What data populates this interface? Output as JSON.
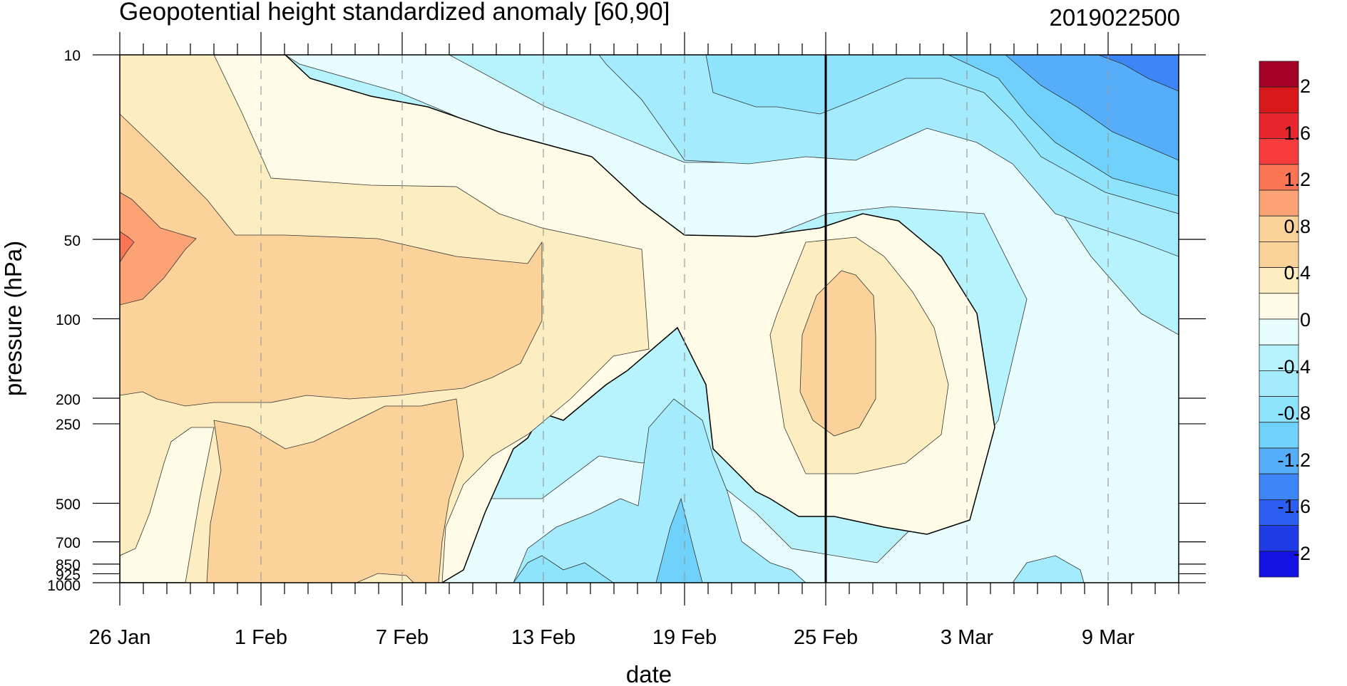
{
  "chart_data": {
    "type": "heatmap",
    "title": "Geopotential height standardized anomaly [60,90]",
    "run_label": "2019022500",
    "xlabel": "date",
    "ylabel": "pressure (hPa)",
    "x_tick_labels": [
      "26 Jan",
      "1 Feb",
      "7 Feb",
      "13 Feb",
      "19 Feb",
      "25 Feb",
      "3 Mar",
      "9 Mar"
    ],
    "x_range": [
      "2019-01-26",
      "2019-03-12"
    ],
    "y_tick_labels": [
      "10",
      "50",
      "100",
      "200",
      "250",
      "500",
      "700",
      "850",
      "925",
      "1000"
    ],
    "y_scale": "log",
    "y_range": [
      1000,
      10
    ],
    "vertical_marker_date": "2019-02-25",
    "colorbar_labels": [
      "2",
      "1.6",
      "1.2",
      "0.8",
      "0.4",
      "0",
      "-0.4",
      "-0.8",
      "-1.2",
      "-1.6",
      "-2"
    ],
    "colorbar_colors": [
      "#a50026",
      "#d7191c",
      "#e8262d",
      "#f63c3c",
      "#fb7454",
      "#fca375",
      "#fcd29b",
      "#fcd29b",
      "#fdeec1",
      "#fffbe7",
      "#e8fdfe",
      "#b6f3fc",
      "#a4ecfd",
      "#8ee4fc",
      "#70d2fa",
      "#56aefa",
      "#3e86f7",
      "#2d5ef2",
      "#1e3de6",
      "#1212e2"
    ],
    "regions": [
      {
        "level": "1.2",
        "color": "#fb7454",
        "lon": "26 Jan",
        "p": 50
      },
      {
        "level": "0.8",
        "color": "#fca375",
        "lon": "26 Jan",
        "p": 70
      },
      {
        "level": "0.4",
        "color": "#fcd29b",
        "lon": "1 Feb",
        "p": 80
      },
      {
        "level": "0.4",
        "color": "#fcd29b",
        "lon": "25 Feb",
        "p": 150
      },
      {
        "level": "0.4",
        "color": "#fcd29b",
        "lon": "1 Feb",
        "p": 850
      },
      {
        "level": "0.2",
        "color": "#fdeec1",
        "lon": "25 Feb",
        "p": 300
      },
      {
        "level": "0",
        "color": "#fffbe7",
        "lon": "19 Feb",
        "p": 60
      },
      {
        "level": "-0.2",
        "color": "#e8fdfe",
        "lon": "1 Mar",
        "p": 700
      },
      {
        "level": "-0.4",
        "color": "#b6f3fc",
        "lon": "19 Feb",
        "p": 30
      },
      {
        "level": "-0.6",
        "color": "#a4ecfd",
        "lon": "23 Feb",
        "p": 15
      },
      {
        "level": "-0.6",
        "color": "#a4ecfd",
        "lon": "19 Feb",
        "p": 500
      },
      {
        "level": "-1.0",
        "color": "#70d2fa",
        "lon": "9 Mar",
        "p": 15
      },
      {
        "level": "-1.4",
        "color": "#3e86f7",
        "lon": "11 Mar",
        "p": 11
      }
    ]
  }
}
